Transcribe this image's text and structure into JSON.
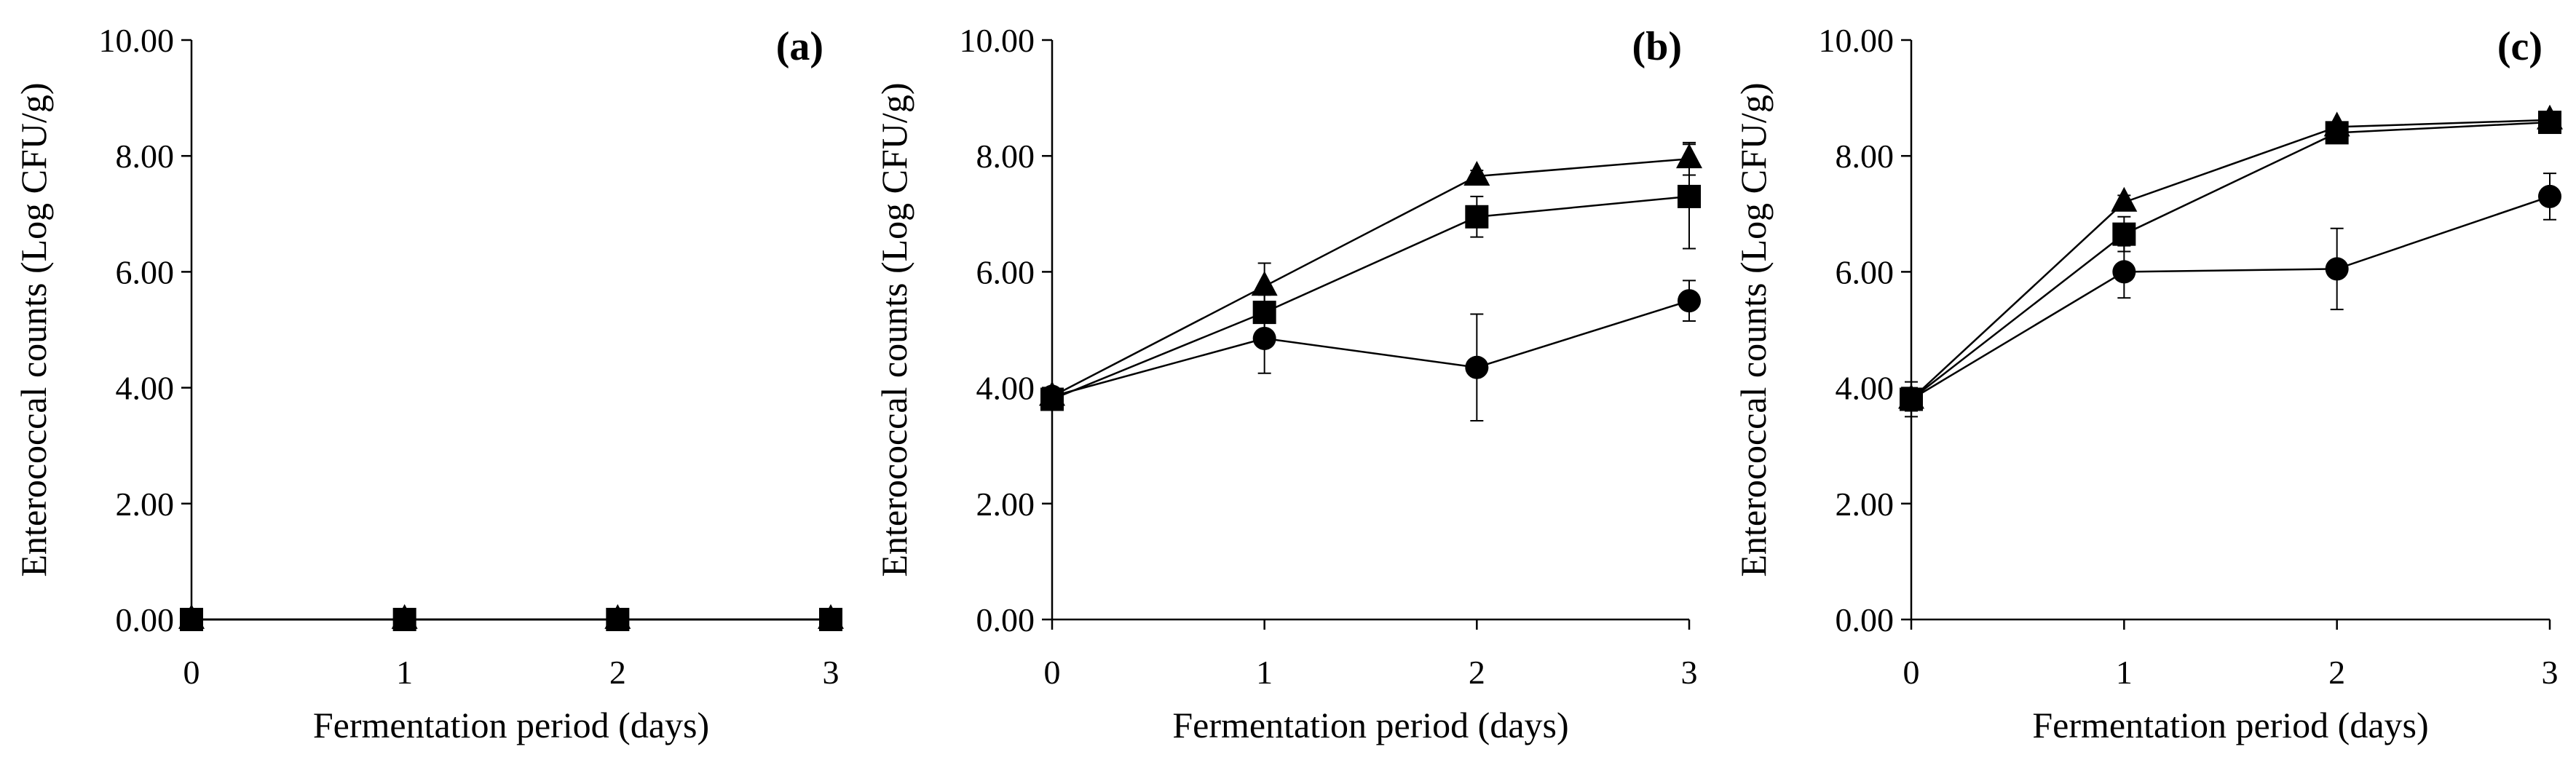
{
  "chart_data": [
    {
      "type": "line",
      "panel_label": "(a)",
      "xlabel": "Fermentation period (days)",
      "ylabel": "Enterococcal counts (Log CFU/g)",
      "x": [
        0,
        1,
        2,
        3
      ],
      "x_tick_labels": [
        "0",
        "1",
        "2",
        "3"
      ],
      "ylim": [
        0,
        10
      ],
      "y_tick_labels": [
        "0.00",
        "2.00",
        "4.00",
        "6.00",
        "8.00",
        "10.00"
      ],
      "grid": false,
      "series": [
        {
          "marker": "circle",
          "values": [
            0,
            0,
            0,
            0
          ],
          "errors": [
            0,
            0,
            0,
            0
          ]
        },
        {
          "marker": "triangle",
          "values": [
            0,
            0,
            0,
            0
          ],
          "errors": [
            0,
            0,
            0,
            0
          ]
        },
        {
          "marker": "square",
          "values": [
            0,
            0,
            0,
            0
          ],
          "errors": [
            0,
            0,
            0,
            0
          ]
        }
      ]
    },
    {
      "type": "line",
      "panel_label": "(b)",
      "xlabel": "Fermentation period (days)",
      "ylabel": "Enterococcal counts (Log CFU/g)",
      "x": [
        0,
        1,
        2,
        3
      ],
      "x_tick_labels": [
        "0",
        "1",
        "2",
        "3"
      ],
      "ylim": [
        0,
        10
      ],
      "y_tick_labels": [
        "0.00",
        "2.00",
        "4.00",
        "6.00",
        "8.00",
        "10.00"
      ],
      "grid": false,
      "series": [
        {
          "marker": "circle",
          "values": [
            3.85,
            4.85,
            4.35,
            5.5
          ],
          "errors": [
            0.1,
            0.6,
            0.92,
            0.35
          ]
        },
        {
          "marker": "triangle",
          "values": [
            3.85,
            5.75,
            7.65,
            7.95
          ],
          "errors": [
            0.05,
            0.4,
            0.1,
            0.28
          ]
        },
        {
          "marker": "square",
          "values": [
            3.8,
            5.3,
            6.95,
            7.3
          ],
          "errors": [
            0.05,
            0.3,
            0.35,
            0.9
          ]
        }
      ]
    },
    {
      "type": "line",
      "panel_label": "(c)",
      "xlabel": "Fermentation period (days)",
      "ylabel": "Enterococcal counts (Log CFU/g)",
      "x": [
        0,
        1,
        2,
        3
      ],
      "x_tick_labels": [
        "0",
        "1",
        "2",
        "3"
      ],
      "ylim": [
        0,
        10
      ],
      "y_tick_labels": [
        "0.00",
        "2.00",
        "4.00",
        "6.00",
        "8.00",
        "10.00"
      ],
      "grid": false,
      "series": [
        {
          "marker": "circle",
          "values": [
            3.8,
            6.0,
            6.05,
            7.3
          ],
          "errors": [
            0.3,
            0.45,
            0.7,
            0.4
          ]
        },
        {
          "marker": "triangle",
          "values": [
            3.8,
            7.2,
            8.5,
            8.62
          ],
          "errors": [
            0.1,
            0.12,
            0.08,
            0.08
          ]
        },
        {
          "marker": "square",
          "values": [
            3.8,
            6.65,
            8.4,
            8.58
          ],
          "errors": [
            0.2,
            0.3,
            0.1,
            0.1
          ]
        }
      ]
    }
  ]
}
